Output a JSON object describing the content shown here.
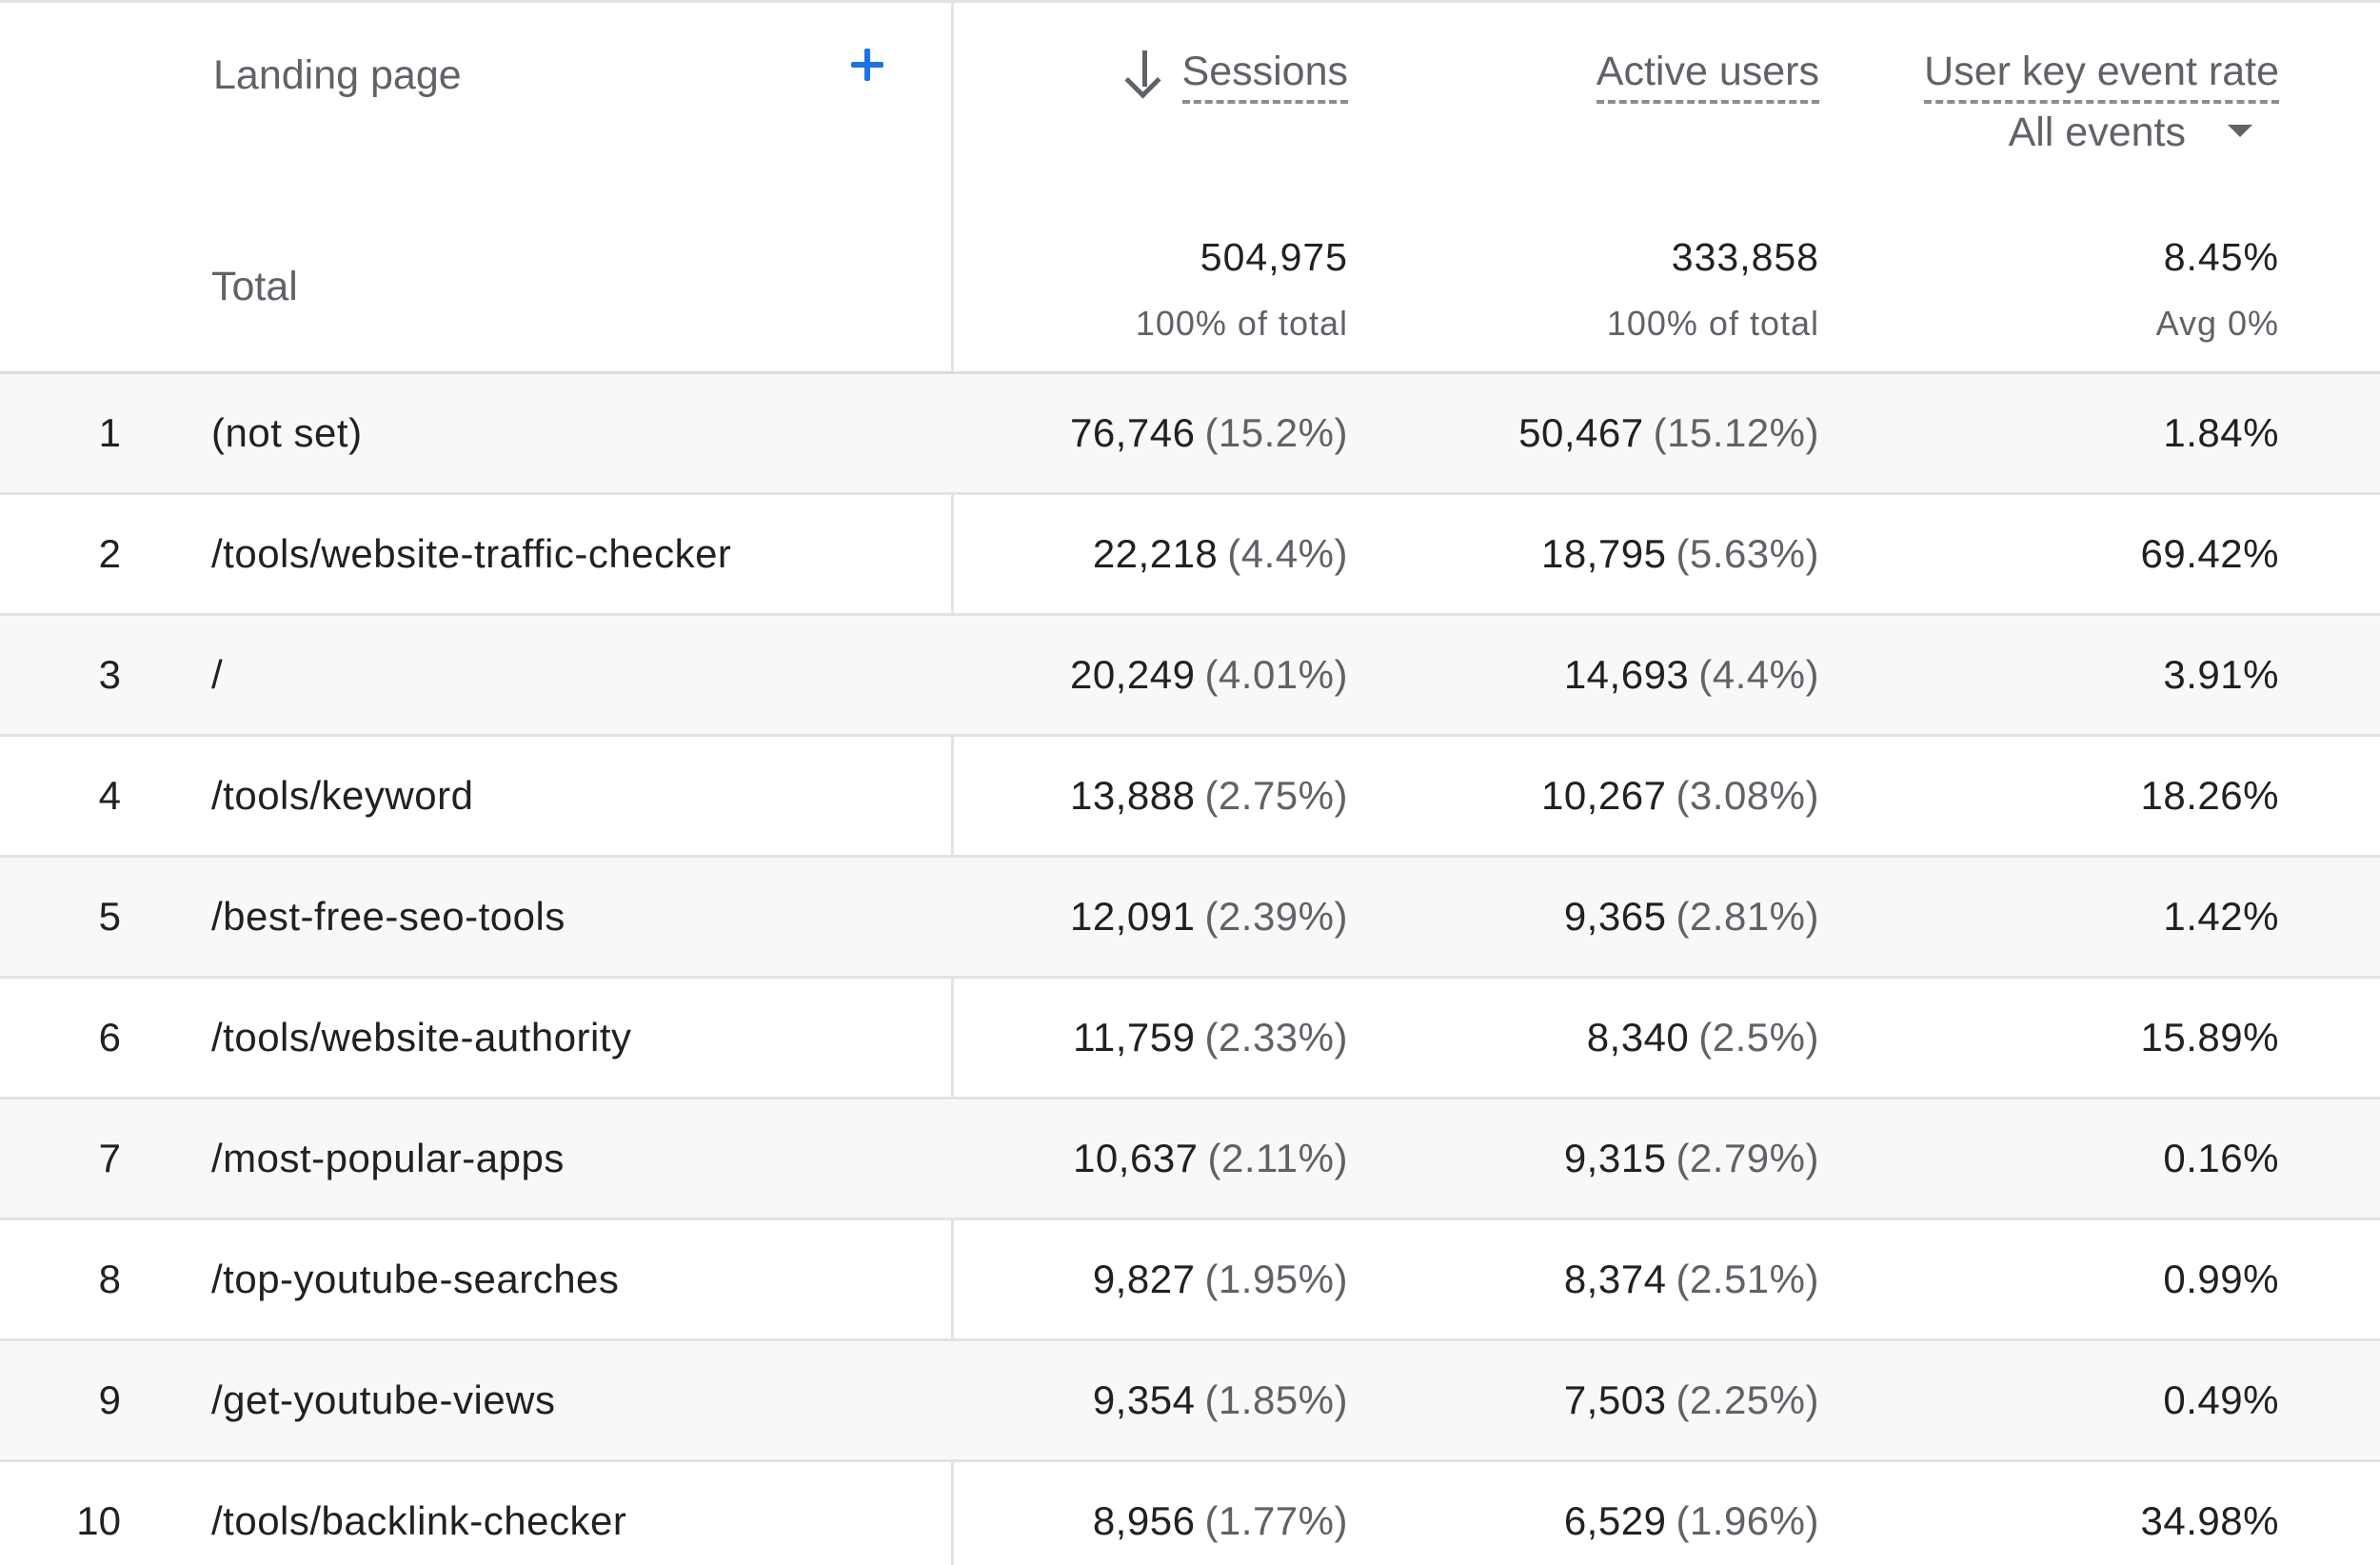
{
  "header": {
    "dimension_label": "Landing page",
    "metrics": {
      "sessions": "Sessions",
      "active_users": "Active users",
      "key_event_rate": "User key event rate"
    },
    "event_filter": "All events"
  },
  "totals": {
    "label": "Total",
    "sessions": "504,975",
    "sessions_sub": "100% of total",
    "active_users": "333,858",
    "active_users_sub": "100% of total",
    "key_event_rate": "8.45%",
    "key_event_rate_sub": "Avg 0%"
  },
  "rows": [
    {
      "index": "1",
      "page": "(not set)",
      "sessions": "76,746",
      "sessions_pct": "(15.2%)",
      "users": "50,467",
      "users_pct": "(15.12%)",
      "rate": "1.84%"
    },
    {
      "index": "2",
      "page": "/tools/website-traffic-checker",
      "sessions": "22,218",
      "sessions_pct": "(4.4%)",
      "users": "18,795",
      "users_pct": "(5.63%)",
      "rate": "69.42%"
    },
    {
      "index": "3",
      "page": "/",
      "sessions": "20,249",
      "sessions_pct": "(4.01%)",
      "users": "14,693",
      "users_pct": "(4.4%)",
      "rate": "3.91%"
    },
    {
      "index": "4",
      "page": "/tools/keyword",
      "sessions": "13,888",
      "sessions_pct": "(2.75%)",
      "users": "10,267",
      "users_pct": "(3.08%)",
      "rate": "18.26%"
    },
    {
      "index": "5",
      "page": "/best-free-seo-tools",
      "sessions": "12,091",
      "sessions_pct": "(2.39%)",
      "users": "9,365",
      "users_pct": "(2.81%)",
      "rate": "1.42%"
    },
    {
      "index": "6",
      "page": "/tools/website-authority",
      "sessions": "11,759",
      "sessions_pct": "(2.33%)",
      "users": "8,340",
      "users_pct": "(2.5%)",
      "rate": "15.89%"
    },
    {
      "index": "7",
      "page": "/most-popular-apps",
      "sessions": "10,637",
      "sessions_pct": "(2.11%)",
      "users": "9,315",
      "users_pct": "(2.79%)",
      "rate": "0.16%"
    },
    {
      "index": "8",
      "page": "/top-youtube-searches",
      "sessions": "9,827",
      "sessions_pct": "(1.95%)",
      "users": "8,374",
      "users_pct": "(2.51%)",
      "rate": "0.99%"
    },
    {
      "index": "9",
      "page": "/get-youtube-views",
      "sessions": "9,354",
      "sessions_pct": "(1.85%)",
      "users": "7,503",
      "users_pct": "(2.25%)",
      "rate": "0.49%"
    },
    {
      "index": "10",
      "page": "/tools/backlink-checker",
      "sessions": "8,956",
      "sessions_pct": "(1.77%)",
      "users": "6,529",
      "users_pct": "(1.96%)",
      "rate": "34.98%"
    }
  ],
  "colors": {
    "accent": "#1a73e8",
    "text": "#202124",
    "muted": "#5f6368",
    "row_shade": "#f8f8f8",
    "divider": "#e3e3e3"
  },
  "icons": {
    "add": "plus-icon",
    "sort": "arrow-down-icon",
    "dropdown": "caret-down-icon"
  }
}
